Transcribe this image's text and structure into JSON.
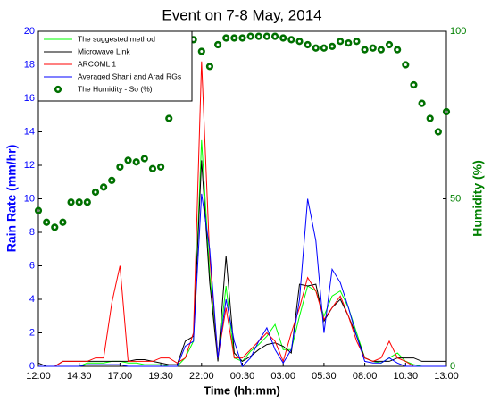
{
  "chart_data": {
    "type": "line",
    "title": "Event on 7-8 May, 2014",
    "x_label": "Time (hh:mm)",
    "y_label": "Rain Rate (mm/hr)",
    "y2_label": "Humidity (%)",
    "categories": [
      "12:00",
      null,
      null,
      null,
      null,
      "14:30",
      null,
      null,
      null,
      null,
      "17:00",
      null,
      null,
      null,
      null,
      "19:30",
      null,
      null,
      null,
      null,
      "22:00",
      null,
      null,
      null,
      null,
      "00:30",
      null,
      null,
      null,
      null,
      "03:00",
      null,
      null,
      null,
      null,
      "05:30",
      null,
      null,
      null,
      null,
      "08:00",
      null,
      null,
      null,
      null,
      "10:30",
      null,
      null,
      null,
      null,
      "13:00"
    ],
    "ylim": [
      0,
      20
    ],
    "yticks": [
      0,
      2,
      4,
      6,
      8,
      10,
      12,
      14,
      16,
      18,
      20
    ],
    "y2lim": [
      0,
      100
    ],
    "y2ticks": [
      0,
      50,
      100
    ],
    "y_color": "#0000ff",
    "y2_color": "#008000",
    "legend": "upper left",
    "series": [
      {
        "name": "The suggested method",
        "color": "#00ff00",
        "style": "line",
        "values": [
          0,
          0,
          0,
          0,
          0,
          0,
          0.2,
          0.2,
          0.2,
          0.3,
          0.3,
          0.2,
          0.2,
          0.1,
          0.1,
          0.1,
          0,
          0,
          0.5,
          1.5,
          13.5,
          5.5,
          0.5,
          4.8,
          0.5,
          0.3,
          0.9,
          1.3,
          1.8,
          2.5,
          1,
          1,
          3,
          4.8,
          4.5,
          3,
          4.2,
          4.5,
          3.5,
          2,
          0.5,
          0.3,
          0.2,
          0.5,
          0.8,
          0.3,
          0.1,
          0,
          0,
          0,
          0
        ]
      },
      {
        "name": "Microwave Link",
        "color": "#000000",
        "style": "line",
        "values": [
          0.2,
          0,
          0,
          0.3,
          0.3,
          0.3,
          0.3,
          0.3,
          0.3,
          0.3,
          0.3,
          0.3,
          0.4,
          0.4,
          0.3,
          0.2,
          0.1,
          0.1,
          1.5,
          1.8,
          12.3,
          5,
          0.3,
          6.6,
          0.8,
          0.3,
          0.6,
          1,
          1.3,
          1.4,
          1.2,
          0.8,
          4.9,
          4.8,
          4.9,
          2.7,
          3.5,
          4,
          3,
          1.8,
          0.5,
          0.3,
          0.3,
          0.3,
          0.5,
          0.5,
          0.5,
          0.3,
          0.3,
          0.3,
          0.3
        ]
      },
      {
        "name": "ARCOML 1",
        "color": "#ff0000",
        "style": "line",
        "values": [
          0,
          0,
          0,
          0.3,
          0.3,
          0.3,
          0.3,
          0.5,
          0.5,
          3.8,
          6,
          0.3,
          0.3,
          0.3,
          0.3,
          0.5,
          0.5,
          0.2,
          0.5,
          2,
          18.2,
          6.5,
          0.5,
          3.5,
          0.5,
          0.5,
          1,
          1.5,
          2,
          1.5,
          0.3,
          2,
          3.5,
          5.3,
          4.5,
          2.8,
          3.5,
          4.2,
          3,
          1.5,
          0.5,
          0.3,
          0.5,
          1.5,
          0.5,
          0.3,
          0,
          0,
          0,
          0,
          0
        ]
      },
      {
        "name": "Averaged Shani and Arad RGs",
        "color": "#0000ff",
        "style": "line",
        "values": [
          0,
          0,
          0,
          0,
          0,
          0,
          0.1,
          0.1,
          0.1,
          0.1,
          0.1,
          0,
          0,
          0,
          0,
          0,
          0,
          0,
          1.2,
          1.5,
          10.3,
          7,
          0.5,
          4,
          1.5,
          0,
          0.5,
          1.5,
          2.3,
          1,
          0.2,
          1,
          4,
          10,
          7.5,
          2,
          5.8,
          5,
          3.5,
          1.8,
          0.3,
          0.2,
          0.2,
          0.5,
          0.2,
          0,
          0,
          0,
          0,
          0,
          0
        ]
      },
      {
        "name": "The Humidity - So (%)",
        "color": "#007000",
        "style": "markers",
        "axis": "y2",
        "values": [
          46.5,
          43,
          41.5,
          43,
          49,
          49,
          49,
          52,
          53.5,
          55.5,
          59.5,
          61.5,
          61,
          62,
          59,
          59.5,
          74,
          81.5,
          92,
          97.5,
          94,
          89.5,
          96,
          98,
          98,
          98,
          98.5,
          98.5,
          98.5,
          98.5,
          98,
          97.5,
          97,
          96,
          95,
          95,
          95.5,
          97,
          96.5,
          97,
          94.5,
          95,
          94.5,
          96,
          94.5,
          90,
          84,
          78.5,
          74,
          70,
          76
        ]
      }
    ]
  }
}
